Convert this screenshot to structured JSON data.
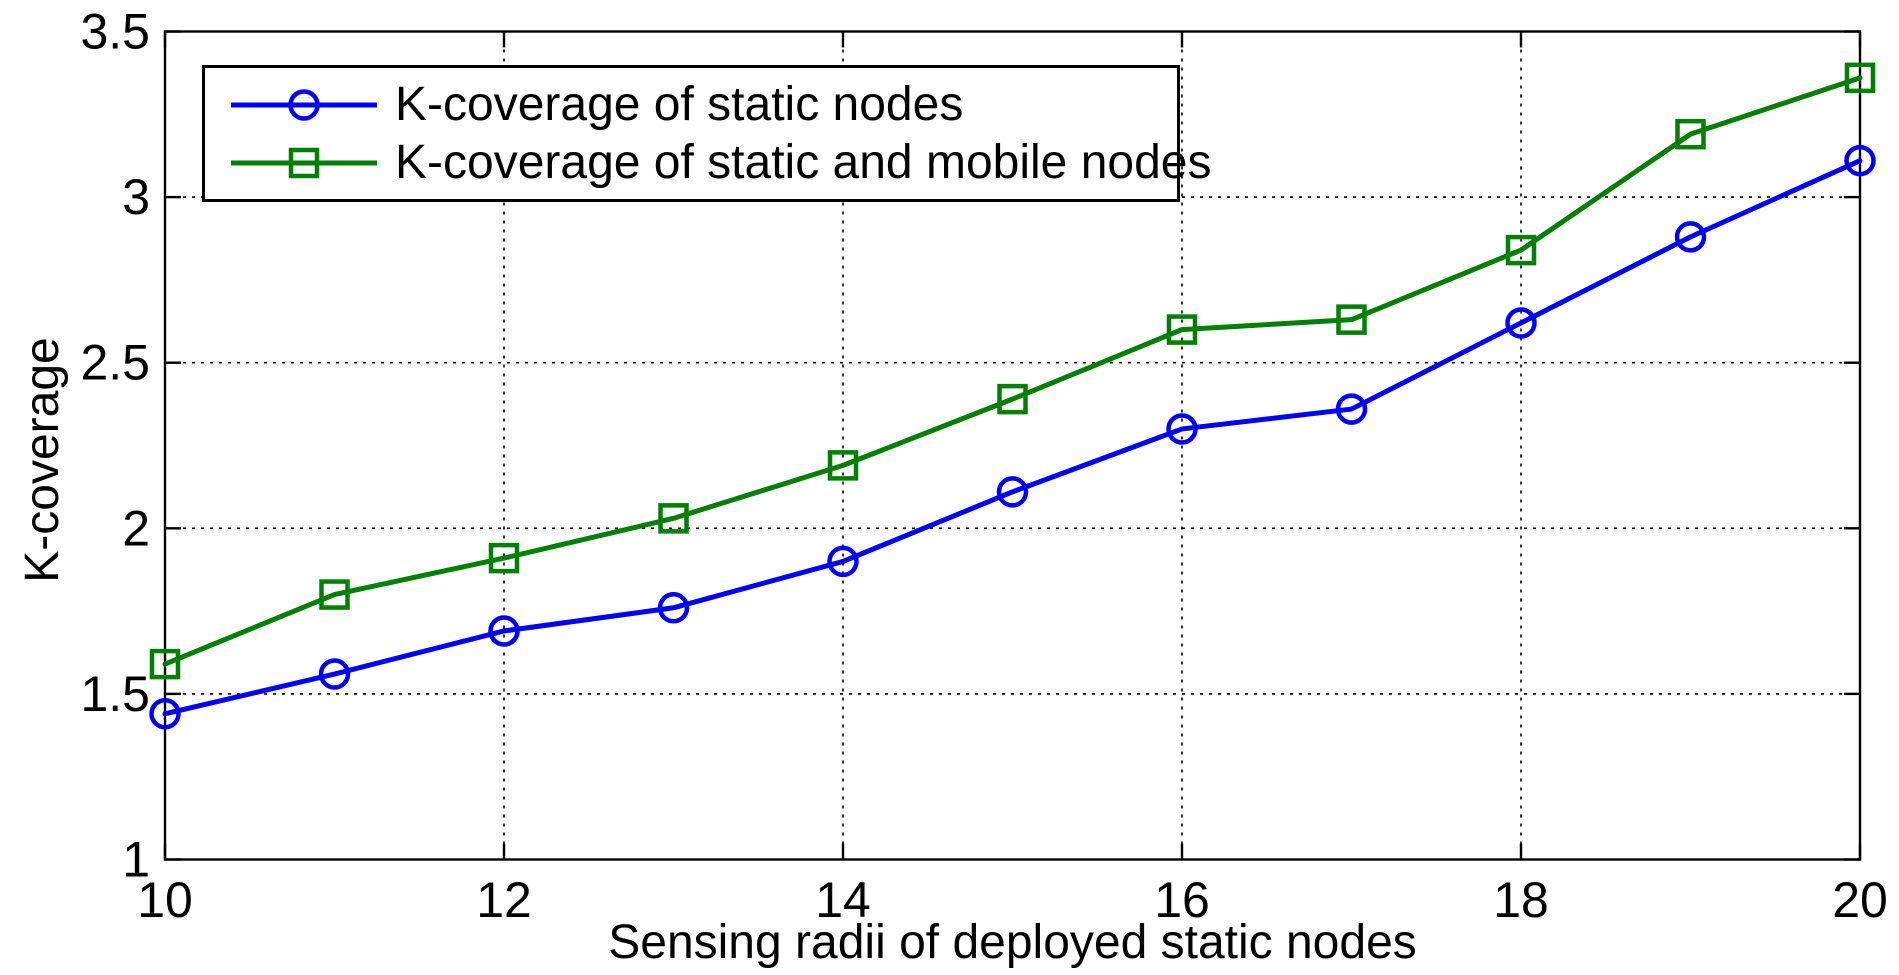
{
  "figure": {
    "background": "#ffffff",
    "axis_color": "#000000",
    "grid_style": "dotted"
  },
  "chart_data": {
    "type": "line",
    "title": "",
    "xlabel": "Sensing radii of deployed static nodes",
    "ylabel": "K-coverage",
    "x": [
      10,
      11,
      12,
      13,
      14,
      15,
      16,
      17,
      18,
      19,
      20
    ],
    "series": [
      {
        "name": "K-coverage of static nodes",
        "color": "#0000ff",
        "marker": "circle",
        "values": [
          1.44,
          1.56,
          1.69,
          1.76,
          1.9,
          2.11,
          2.3,
          2.36,
          2.62,
          2.88,
          3.11
        ]
      },
      {
        "name": "K-coverage of static and mobile nodes",
        "color": "#007f00",
        "marker": "square",
        "values": [
          1.59,
          1.8,
          1.91,
          2.03,
          2.19,
          2.39,
          2.6,
          2.63,
          2.84,
          3.19,
          3.36
        ]
      }
    ],
    "xlim": [
      10,
      20
    ],
    "ylim": [
      1,
      3.5
    ],
    "xticks": [
      10,
      12,
      14,
      16,
      18,
      20
    ],
    "xtick_labels": [
      "10",
      "12",
      "14",
      "16",
      "18",
      "20"
    ],
    "yticks": [
      1,
      1.5,
      2,
      2.5,
      3,
      3.5
    ],
    "ytick_labels": [
      "1",
      "1.5",
      "2",
      "2.5",
      "3",
      "3.5"
    ],
    "grid": true,
    "legend_position": "top-left"
  }
}
